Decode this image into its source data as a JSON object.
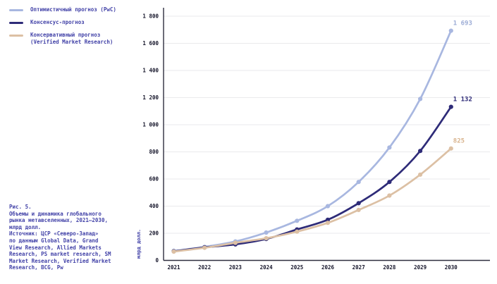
{
  "figure": {
    "caption": "Рис. 5.\nОбъемы и динамика глобального\nрынка метавселенных, 2021–2030,\nмлрд долл.\nИсточник: ЦСР «Северо-Запад»\nпо данным Global Data, Grand\nView Research, Allied Markets\nResearch, PS market research, SM\nMarket Research, Verified Market\nResearch, BCG, Pw"
  },
  "legend": {
    "items": [
      {
        "label": "Оптимистичный прогноз (PwC)",
        "color": "#a8b7e0"
      },
      {
        "label": "Консенсус-прогноз",
        "color": "#2e2b78"
      },
      {
        "label": "Консервативный прогноз (Verified Market Research)",
        "color": "#dcc0a4"
      }
    ]
  },
  "chart_data": {
    "type": "line",
    "x": [
      "2021",
      "2022",
      "2023",
      "2024",
      "2025",
      "2026",
      "2027",
      "2028",
      "2029",
      "2030"
    ],
    "series": [
      {
        "name": "Оптимистичный прогноз (PwC)",
        "color": "#a8b7e0",
        "label_color": "#9dadd6",
        "values": [
          70,
          100,
          140,
          205,
          292,
          400,
          578,
          832,
          1190,
          1693
        ],
        "end_label": "1 693"
      },
      {
        "name": "Консенсус-прогноз",
        "color": "#2e2b78",
        "label_color": "#2e2b78",
        "values": [
          67,
          96,
          118,
          158,
          228,
          300,
          422,
          578,
          807,
          1132
        ],
        "end_label": "1 132"
      },
      {
        "name": "Консервативный прогноз (Verified Market Research)",
        "color": "#dcc0a4",
        "label_color": "#d8b38d",
        "values": [
          65,
          93,
          130,
          163,
          212,
          277,
          372,
          478,
          632,
          825
        ],
        "end_label": "825"
      }
    ],
    "title": "Объемы и динамика глобального рынка метавселенных, 2021–2030, млрд долл.",
    "xlabel": "",
    "ylabel": "млрд долл.",
    "ylim": [
      0,
      1800
    ],
    "ytick_step": 200,
    "ytick_labels": [
      "0",
      "200",
      "400",
      "600",
      "800",
      "1 000",
      "1 200",
      "1 400",
      "1 600",
      "1 800"
    ],
    "grid": true,
    "legend_position": "top-left",
    "colors": {
      "gridline": "#eaeaec",
      "axis": "#2e2e3e",
      "tick_text": "#15152a",
      "accent_text": "#4343a8"
    }
  }
}
